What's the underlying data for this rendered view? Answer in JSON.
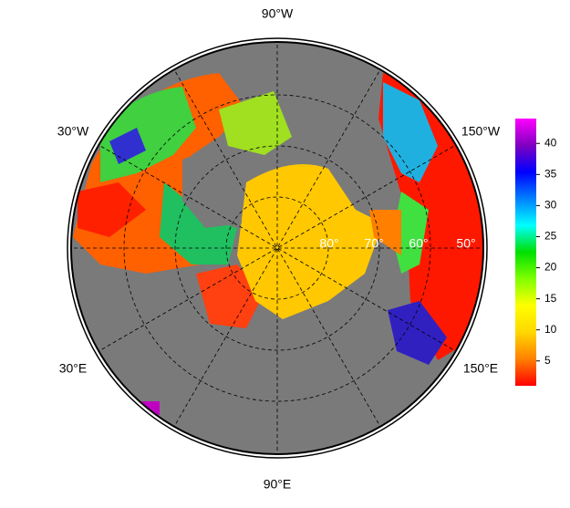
{
  "map": {
    "longitude_labels": [
      "90°W",
      "30°W",
      "150°W",
      "30°E",
      "150°E",
      "90°E"
    ],
    "latitude_labels": [
      "80°",
      "70°",
      "60°",
      "50°"
    ]
  },
  "colorbar": {
    "range": [
      1,
      44
    ],
    "ticks": [
      5,
      10,
      15,
      20,
      25,
      30,
      35,
      40
    ],
    "colors": [
      "#ff0000",
      "#ff8000",
      "#ffd700",
      "#ffff00",
      "#80ff00",
      "#00e000",
      "#00ffff",
      "#0080ff",
      "#0000ff",
      "#8000c0",
      "#ff00ff"
    ]
  }
}
